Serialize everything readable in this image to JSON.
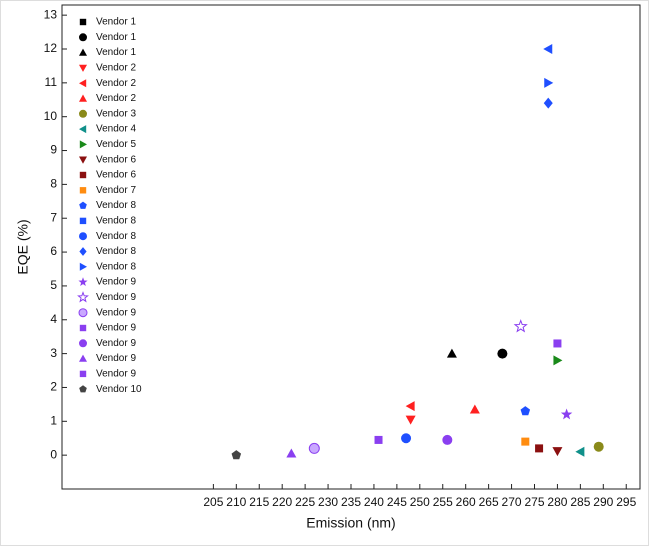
{
  "chart_data": {
    "type": "scatter",
    "xlabel": "Emission (nm)",
    "ylabel": "EQE (%)",
    "xlim": [
      172,
      298
    ],
    "ylim": [
      -1,
      13.3
    ],
    "xticks": [
      205,
      210,
      215,
      220,
      225,
      230,
      235,
      240,
      245,
      250,
      255,
      260,
      265,
      270,
      275,
      280,
      285,
      290,
      295
    ],
    "yticks": [
      0,
      1,
      2,
      3,
      4,
      5,
      6,
      7,
      8,
      9,
      10,
      11,
      12,
      13
    ],
    "series": [
      {
        "name": "Vendor 1",
        "color": "#000000",
        "marker": "square",
        "x": [],
        "y": []
      },
      {
        "name": "Vendor 1",
        "color": "#000000",
        "marker": "circle",
        "x": [
          268
        ],
        "y": [
          3.0
        ]
      },
      {
        "name": "Vendor 1",
        "color": "#000000",
        "marker": "triangle-up",
        "x": [
          257
        ],
        "y": [
          3.0
        ]
      },
      {
        "name": "Vendor 2",
        "color": "#ff2020",
        "marker": "triangle-down",
        "x": [
          248
        ],
        "y": [
          1.05
        ]
      },
      {
        "name": "Vendor 2",
        "color": "#ff2020",
        "marker": "triangle-left",
        "x": [
          248
        ],
        "y": [
          1.45
        ]
      },
      {
        "name": "Vendor 2",
        "color": "#ff2020",
        "marker": "triangle-up",
        "x": [
          262
        ],
        "y": [
          1.35
        ]
      },
      {
        "name": "Vendor 3",
        "color": "#8a8a1a",
        "marker": "circle",
        "x": [
          289
        ],
        "y": [
          0.25
        ]
      },
      {
        "name": "Vendor 4",
        "color": "#10908a",
        "marker": "triangle-left",
        "x": [
          285
        ],
        "y": [
          0.1
        ]
      },
      {
        "name": "Vendor 5",
        "color": "#1a8a1a",
        "marker": "triangle-right",
        "x": [
          280
        ],
        "y": [
          2.8
        ]
      },
      {
        "name": "Vendor 6",
        "color": "#8b1010",
        "marker": "triangle-down",
        "x": [
          280
        ],
        "y": [
          0.12
        ]
      },
      {
        "name": "Vendor 6",
        "color": "#8b1010",
        "marker": "square",
        "x": [
          276
        ],
        "y": [
          0.2
        ]
      },
      {
        "name": "Vendor 7",
        "color": "#ff8c10",
        "marker": "square",
        "x": [
          273
        ],
        "y": [
          0.4
        ]
      },
      {
        "name": "Vendor 8",
        "color": "#1f4fff",
        "marker": "pentagon",
        "x": [
          273
        ],
        "y": [
          1.3
        ]
      },
      {
        "name": "Vendor 8",
        "color": "#1f4fff",
        "marker": "square",
        "x": [],
        "y": []
      },
      {
        "name": "Vendor 8",
        "color": "#1f4fff",
        "marker": "circle",
        "x": [
          247
        ],
        "y": [
          0.5
        ]
      },
      {
        "name": "Vendor 8",
        "color": "#1f4fff",
        "marker": "diamond",
        "x": [
          278
        ],
        "y": [
          10.4
        ]
      },
      {
        "name": "Vendor 8",
        "color": "#1f4fff",
        "marker": "triangle-right",
        "markers": [
          "triangle-right",
          "triangle-left"
        ],
        "x": [
          278,
          278
        ],
        "y": [
          11.0,
          12.0
        ]
      },
      {
        "name": "Vendor 9",
        "color": "#8a3ff0",
        "marker": "star",
        "x": [
          282
        ],
        "y": [
          1.2
        ]
      },
      {
        "name": "Vendor 9",
        "color": "#8a3ff0",
        "marker": "star-open",
        "x": [
          272
        ],
        "y": [
          3.8
        ]
      },
      {
        "name": "Vendor 9",
        "color": "#8a3ff0",
        "marker": "half-circle",
        "x": [
          227
        ],
        "y": [
          0.2
        ]
      },
      {
        "name": "Vendor 9",
        "color": "#8a3ff0",
        "marker": "square",
        "x": [
          241
        ],
        "y": [
          0.45
        ]
      },
      {
        "name": "Vendor 9",
        "color": "#8a3ff0",
        "marker": "circle",
        "x": [
          256
        ],
        "y": [
          0.45
        ]
      },
      {
        "name": "Vendor 9",
        "color": "#8a3ff0",
        "marker": "triangle-up",
        "x": [
          222
        ],
        "y": [
          0.05
        ]
      },
      {
        "name": "Vendor 9",
        "color": "#8a3ff0",
        "marker": "square",
        "x": [
          280
        ],
        "y": [
          3.3
        ]
      },
      {
        "name": "Vendor 10",
        "color": "#444444",
        "marker": "pentagon",
        "x": [
          210
        ],
        "y": [
          0
        ]
      }
    ]
  }
}
